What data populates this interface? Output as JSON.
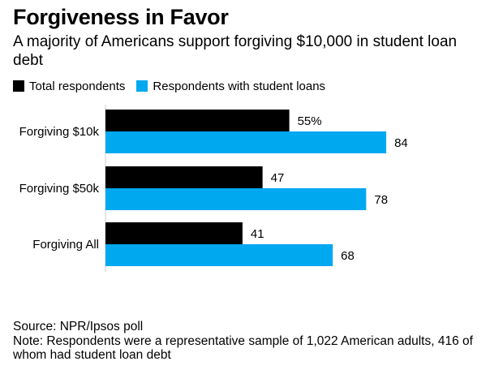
{
  "header": {
    "title": "Forgiveness in Favor",
    "subtitle": "A majority of Americans support forgiving $10,000 in student loan debt"
  },
  "colors": {
    "total": "#000000",
    "loans": "#00a8f0"
  },
  "chart_data": {
    "type": "bar",
    "orientation": "horizontal",
    "categories": [
      "Forgiving $10k",
      "Forgiving $50k",
      "Forgiving All"
    ],
    "series": [
      {
        "name": "Total respondents",
        "values": [
          55,
          47,
          41
        ],
        "labels": [
          "55%",
          "47",
          "41"
        ]
      },
      {
        "name": "Respondents with student loans",
        "values": [
          84,
          78,
          68
        ],
        "labels": [
          "84",
          "78",
          "68"
        ]
      }
    ],
    "xlim": [
      0,
      100
    ],
    "grid": false,
    "legend": "top-left"
  },
  "footer": {
    "source": "Source: NPR/Ipsos poll",
    "note": "Note: Respondents were a representative sample of 1,022 American adults, 416 of whom had student loan debt"
  }
}
